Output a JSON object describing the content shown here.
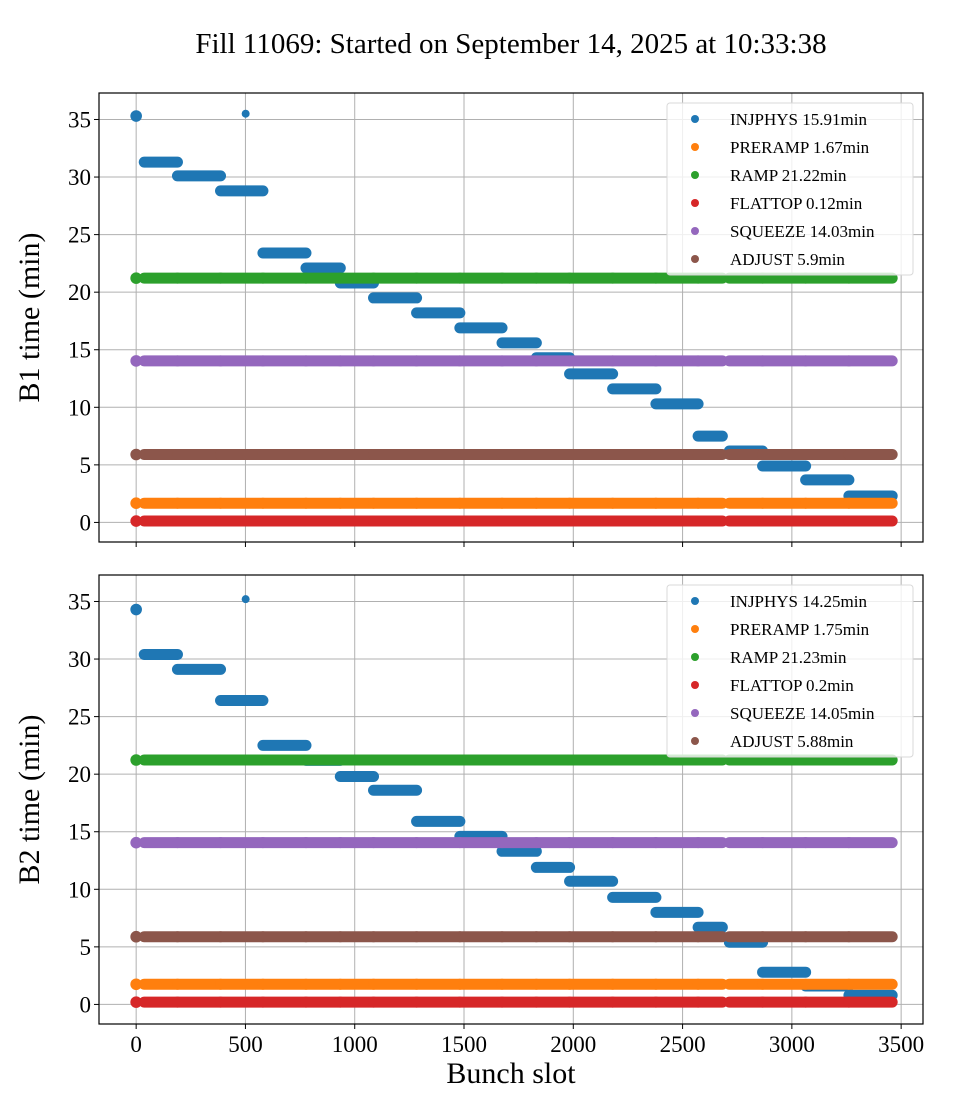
{
  "chart_data": [
    {
      "type": "scatter",
      "title": "Fill 11069: Started on September 14, 2025 at 10:33:38",
      "xlabel": "",
      "ylabel": "B1 time (min)",
      "xlim": [
        -170,
        3600
      ],
      "ylim": [
        -1.7,
        37.3
      ],
      "xticks": [
        0,
        500,
        1000,
        1500,
        2000,
        2500,
        3000,
        3500
      ],
      "xtick_labels_visible": false,
      "yticks": [
        0,
        5,
        10,
        15,
        20,
        25,
        30,
        35
      ],
      "grid": true,
      "legend_position": "top-right",
      "trains": [
        [
          0,
          0
        ],
        [
          37,
          189
        ],
        [
          189,
          386
        ],
        [
          386,
          580
        ],
        [
          580,
          777
        ],
        [
          777,
          934
        ],
        [
          934,
          1086
        ],
        [
          1086,
          1283
        ],
        [
          1283,
          1481
        ],
        [
          1481,
          1674
        ],
        [
          1674,
          1831
        ],
        [
          1831,
          1983
        ],
        [
          1983,
          2180
        ],
        [
          2180,
          2378
        ],
        [
          2378,
          2571
        ],
        [
          2571,
          2682
        ],
        [
          2714,
          2866
        ],
        [
          2866,
          3063
        ],
        [
          3063,
          3261
        ],
        [
          3261,
          3459
        ]
      ],
      "series": [
        {
          "name": "INJPHYS",
          "label": "INJPHYS 15.91min",
          "color": "#1f77b4",
          "train_values": [
            35.3,
            31.3,
            30.1,
            28.8,
            23.4,
            22.1,
            20.8,
            19.5,
            18.2,
            16.9,
            15.6,
            14.3,
            12.9,
            11.6,
            10.3,
            7.5,
            6.2,
            4.9,
            3.7,
            2.3
          ],
          "extra_points": [
            [
              501,
              35.5
            ]
          ]
        },
        {
          "name": "PRERAMP",
          "label": "PRERAMP 1.67min",
          "color": "#ff7f0e",
          "constant": 1.67
        },
        {
          "name": "RAMP",
          "label": "RAMP 21.22min",
          "color": "#2ca02c",
          "constant": 21.22
        },
        {
          "name": "FLATTOP",
          "label": "FLATTOP 0.12min",
          "color": "#d62728",
          "constant": 0.12
        },
        {
          "name": "SQUEEZE",
          "label": "SQUEEZE 14.03min",
          "color": "#9467bd",
          "constant": 14.03
        },
        {
          "name": "ADJUST",
          "label": "ADJUST 5.9min",
          "color": "#8c564b",
          "constant": 5.9
        }
      ]
    },
    {
      "type": "scatter",
      "title": "",
      "xlabel": "Bunch slot",
      "ylabel": "B2 time (min)",
      "xlim": [
        -170,
        3600
      ],
      "ylim": [
        -1.7,
        37.3
      ],
      "xticks": [
        0,
        500,
        1000,
        1500,
        2000,
        2500,
        3000,
        3500
      ],
      "xtick_labels_visible": true,
      "yticks": [
        0,
        5,
        10,
        15,
        20,
        25,
        30,
        35
      ],
      "grid": true,
      "legend_position": "top-right",
      "trains": [
        [
          0,
          0
        ],
        [
          37,
          189
        ],
        [
          189,
          386
        ],
        [
          386,
          580
        ],
        [
          580,
          777
        ],
        [
          777,
          934
        ],
        [
          934,
          1086
        ],
        [
          1086,
          1283
        ],
        [
          1283,
          1481
        ],
        [
          1481,
          1674
        ],
        [
          1674,
          1831
        ],
        [
          1831,
          1983
        ],
        [
          1983,
          2180
        ],
        [
          2180,
          2378
        ],
        [
          2378,
          2571
        ],
        [
          2571,
          2682
        ],
        [
          2714,
          2866
        ],
        [
          2866,
          3063
        ],
        [
          3063,
          3261
        ],
        [
          3261,
          3459
        ]
      ],
      "series": [
        {
          "name": "INJPHYS",
          "label": "INJPHYS 14.25min",
          "color": "#1f77b4",
          "train_values": [
            34.3,
            30.4,
            29.1,
            26.4,
            22.5,
            21.2,
            19.8,
            18.6,
            15.9,
            14.6,
            13.3,
            11.9,
            10.7,
            9.3,
            8.0,
            6.7,
            5.4,
            2.8,
            1.6,
            0.8
          ],
          "extra_points": [
            [
              501,
              35.2
            ]
          ]
        },
        {
          "name": "PRERAMP",
          "label": "PRERAMP 1.75min",
          "color": "#ff7f0e",
          "constant": 1.75
        },
        {
          "name": "RAMP",
          "label": "RAMP 21.23min",
          "color": "#2ca02c",
          "constant": 21.23
        },
        {
          "name": "FLATTOP",
          "label": "FLATTOP 0.2min",
          "color": "#d62728",
          "constant": 0.2
        },
        {
          "name": "SQUEEZE",
          "label": "SQUEEZE 14.05min",
          "color": "#9467bd",
          "constant": 14.05
        },
        {
          "name": "ADJUST",
          "label": "ADJUST 5.88min",
          "color": "#8c564b",
          "constant": 5.88
        }
      ]
    }
  ],
  "figure": {
    "title": "Fill 11069: Started on September 14, 2025 at 10:33:38",
    "xlabel": "Bunch slot"
  }
}
